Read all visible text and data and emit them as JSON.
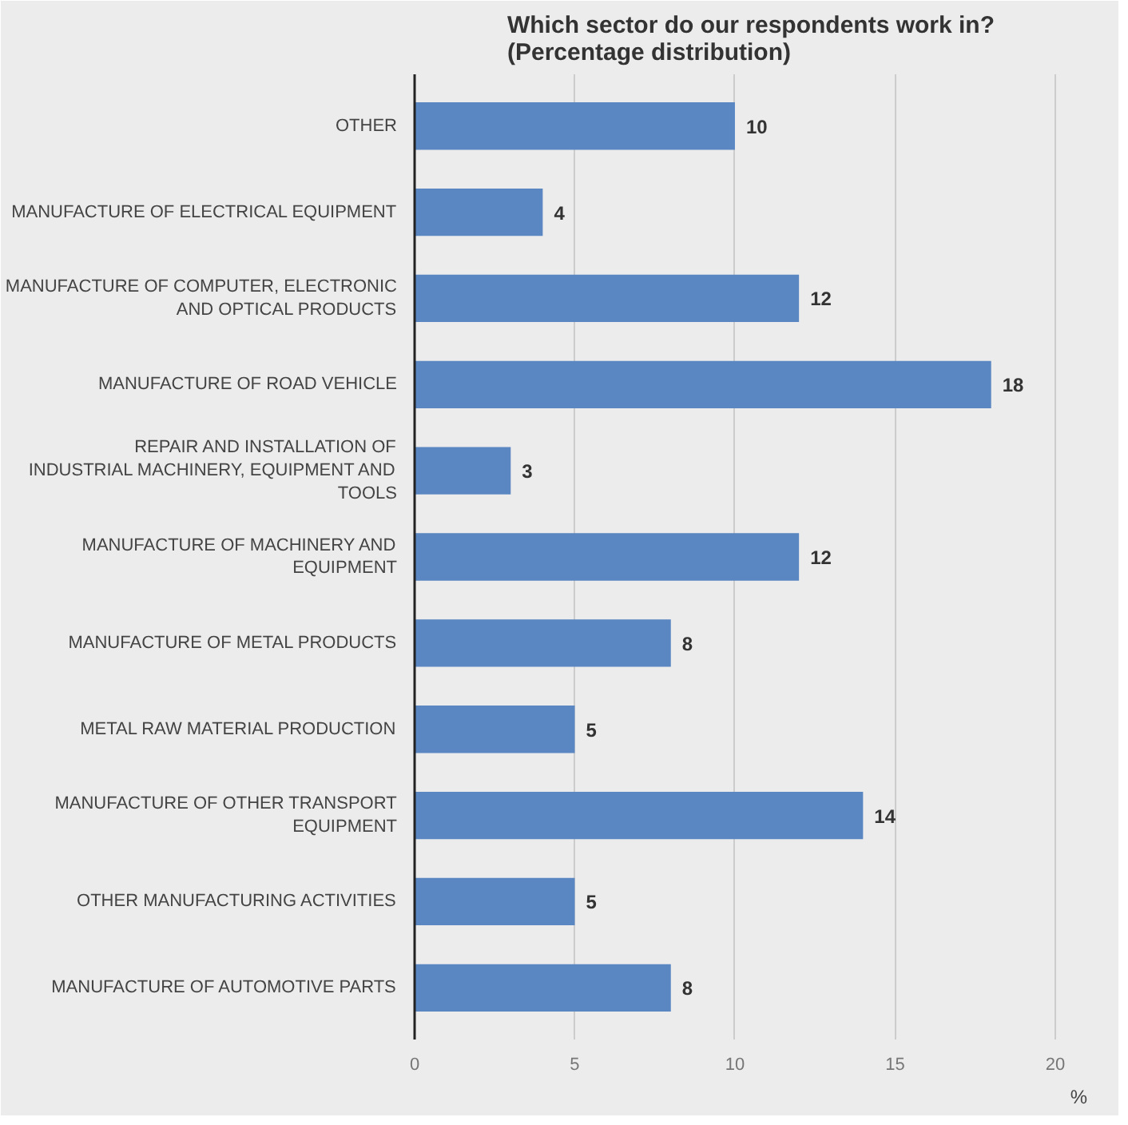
{
  "chart_data": {
    "type": "bar",
    "orientation": "horizontal",
    "title": "Which sector do our respondents work in?\n(Percentage distribution)",
    "xlabel": "%",
    "categories": [
      "OTHER",
      "MANUFACTURE OF ELECTRICAL EQUIPMENT",
      "MANUFACTURE OF COMPUTER, ELECTRONIC AND OPTICAL PRODUCTS",
      "MANUFACTURE OF ROAD VEHICLE",
      "REPAIR AND INSTALLATION OF INDUSTRIAL MACHINERY, EQUIPMENT AND TOOLS",
      "MANUFACTURE OF MACHINERY AND EQUIPMENT",
      "MANUFACTURE OF METAL PRODUCTS",
      "METAL RAW MATERIAL PRODUCTION",
      "MANUFACTURE OF OTHER TRANSPORT EQUIPMENT",
      "OTHER MANUFACTURING ACTIVITIES",
      "MANUFACTURE OF AUTOMOTIVE PARTS"
    ],
    "values": [
      10,
      4,
      12,
      18,
      3,
      12,
      8,
      5,
      14,
      5,
      8
    ],
    "color": "#5a86c2",
    "xlim": [
      0,
      21
    ],
    "xticks": [
      0,
      5,
      10,
      15,
      20
    ],
    "grid": "x",
    "data_labels": true
  }
}
